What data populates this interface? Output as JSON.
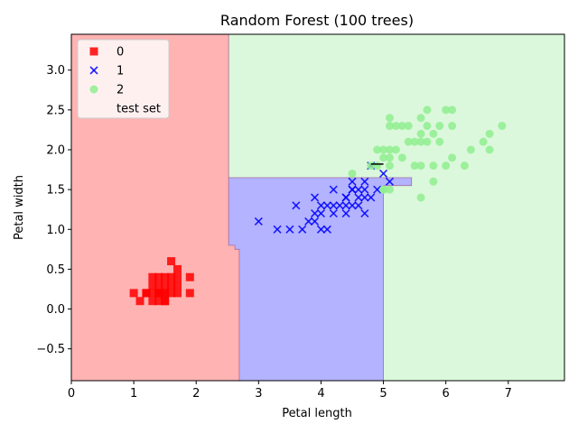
{
  "chart_data": {
    "type": "scatter",
    "title": "Random Forest (100 trees)",
    "xlabel": "Petal length",
    "ylabel": "Petal width",
    "xlim": [
      0,
      7.9
    ],
    "ylim": [
      -0.9,
      3.45
    ],
    "xticks": [
      0,
      1,
      2,
      3,
      4,
      5,
      6,
      7
    ],
    "yticks": [
      -0.5,
      0.0,
      0.5,
      1.0,
      1.5,
      2.0,
      2.5,
      3.0
    ],
    "xtick_labels": [
      "0",
      "1",
      "2",
      "3",
      "4",
      "5",
      "6",
      "7"
    ],
    "ytick_labels": [
      "−0.5",
      "0.0",
      "0.5",
      "1.0",
      "1.5",
      "2.0",
      "2.5",
      "3.0"
    ],
    "grid": false,
    "legend_position": "upper-left",
    "legend": [
      {
        "label": "0",
        "marker": "square",
        "color": "#ff0000"
      },
      {
        "label": "1",
        "marker": "x",
        "color": "#0000ff"
      },
      {
        "label": "2",
        "marker": "circle",
        "color": "#90ee90"
      },
      {
        "label": "test set",
        "marker": "none",
        "color": "#ffffff"
      }
    ],
    "decision_regions": [
      {
        "class": "0",
        "color": "#ffb3b3",
        "polygon": [
          [
            0,
            -0.9
          ],
          [
            2.69,
            -0.9
          ],
          [
            2.69,
            0.75
          ],
          [
            2.62,
            0.75
          ],
          [
            2.62,
            0.8
          ],
          [
            2.52,
            0.8
          ],
          [
            2.52,
            3.45
          ],
          [
            0,
            3.45
          ]
        ]
      },
      {
        "class": "1",
        "color": "#b3b3ff",
        "polygon": [
          [
            2.69,
            -0.9
          ],
          [
            5.0,
            -0.9
          ],
          [
            5.0,
            1.55
          ],
          [
            5.45,
            1.55
          ],
          [
            5.45,
            1.65
          ],
          [
            2.52,
            1.65
          ],
          [
            2.52,
            0.8
          ],
          [
            2.62,
            0.8
          ],
          [
            2.62,
            0.75
          ],
          [
            2.69,
            0.75
          ]
        ]
      },
      {
        "class": "2",
        "color": "#dcf8dc",
        "polygon": [
          [
            5.0,
            -0.9
          ],
          [
            7.9,
            -0.9
          ],
          [
            7.9,
            3.45
          ],
          [
            2.52,
            3.45
          ],
          [
            2.52,
            1.65
          ],
          [
            5.45,
            1.65
          ],
          [
            5.45,
            1.55
          ],
          [
            5.0,
            1.55
          ]
        ]
      }
    ],
    "series": [
      {
        "name": "0",
        "marker": "square",
        "color": "#ff0000",
        "points": [
          [
            1.4,
            0.2
          ],
          [
            1.3,
            0.2
          ],
          [
            1.5,
            0.2
          ],
          [
            1.7,
            0.4
          ],
          [
            1.4,
            0.3
          ],
          [
            1.5,
            0.1
          ],
          [
            1.6,
            0.2
          ],
          [
            1.1,
            0.1
          ],
          [
            1.2,
            0.2
          ],
          [
            1.3,
            0.4
          ],
          [
            1.7,
            0.3
          ],
          [
            1.0,
            0.2
          ],
          [
            1.9,
            0.2
          ],
          [
            1.6,
            0.4
          ],
          [
            1.4,
            0.1
          ],
          [
            1.3,
            0.3
          ],
          [
            1.6,
            0.6
          ],
          [
            1.9,
            0.4
          ],
          [
            1.5,
            0.4
          ],
          [
            1.4,
            0.4
          ],
          [
            1.7,
            0.2
          ],
          [
            1.5,
            0.3
          ],
          [
            1.6,
            0.3
          ],
          [
            1.4,
            0.2
          ],
          [
            1.7,
            0.5
          ],
          [
            1.5,
            0.2
          ],
          [
            1.2,
            0.2
          ],
          [
            1.3,
            0.1
          ],
          [
            1.4,
            0.2
          ],
          [
            1.5,
            0.1
          ]
        ]
      },
      {
        "name": "1",
        "marker": "x",
        "color": "#0000ff",
        "points": [
          [
            3.0,
            1.1
          ],
          [
            3.3,
            1.0
          ],
          [
            3.5,
            1.0
          ],
          [
            3.6,
            1.3
          ],
          [
            3.7,
            1.0
          ],
          [
            3.8,
            1.1
          ],
          [
            3.9,
            1.1
          ],
          [
            3.9,
            1.2
          ],
          [
            3.9,
            1.4
          ],
          [
            4.0,
            1.0
          ],
          [
            4.0,
            1.2
          ],
          [
            4.0,
            1.3
          ],
          [
            4.1,
            1.0
          ],
          [
            4.1,
            1.3
          ],
          [
            4.2,
            1.2
          ],
          [
            4.2,
            1.3
          ],
          [
            4.2,
            1.5
          ],
          [
            4.3,
            1.3
          ],
          [
            4.4,
            1.2
          ],
          [
            4.4,
            1.3
          ],
          [
            4.4,
            1.4
          ],
          [
            4.5,
            1.3
          ],
          [
            4.5,
            1.5
          ],
          [
            4.5,
            1.6
          ],
          [
            4.6,
            1.3
          ],
          [
            4.6,
            1.4
          ],
          [
            4.6,
            1.5
          ],
          [
            4.7,
            1.2
          ],
          [
            4.7,
            1.4
          ],
          [
            4.7,
            1.5
          ],
          [
            4.7,
            1.6
          ],
          [
            4.8,
            1.4
          ],
          [
            4.8,
            1.8
          ],
          [
            4.9,
            1.5
          ],
          [
            5.0,
            1.7
          ],
          [
            5.1,
            1.6
          ],
          [
            4.5,
            1.5
          ],
          [
            4.4,
            1.4
          ]
        ]
      },
      {
        "name": "2",
        "marker": "circle",
        "color": "#90ee90",
        "points": [
          [
            4.5,
            1.7
          ],
          [
            4.8,
            1.8
          ],
          [
            4.9,
            1.8
          ],
          [
            4.9,
            2.0
          ],
          [
            5.0,
            1.5
          ],
          [
            5.0,
            1.9
          ],
          [
            5.0,
            2.0
          ],
          [
            5.1,
            1.5
          ],
          [
            5.1,
            1.8
          ],
          [
            5.1,
            1.9
          ],
          [
            5.1,
            2.0
          ],
          [
            5.1,
            2.3
          ],
          [
            5.1,
            2.4
          ],
          [
            5.2,
            2.0
          ],
          [
            5.2,
            2.3
          ],
          [
            5.3,
            1.9
          ],
          [
            5.3,
            2.3
          ],
          [
            5.4,
            2.1
          ],
          [
            5.4,
            2.3
          ],
          [
            5.5,
            1.8
          ],
          [
            5.5,
            2.1
          ],
          [
            5.6,
            1.4
          ],
          [
            5.6,
            1.8
          ],
          [
            5.6,
            2.1
          ],
          [
            5.6,
            2.2
          ],
          [
            5.6,
            2.4
          ],
          [
            5.7,
            2.1
          ],
          [
            5.7,
            2.3
          ],
          [
            5.7,
            2.5
          ],
          [
            5.8,
            1.6
          ],
          [
            5.8,
            1.8
          ],
          [
            5.8,
            2.2
          ],
          [
            5.9,
            2.1
          ],
          [
            5.9,
            2.3
          ],
          [
            6.0,
            1.8
          ],
          [
            6.0,
            2.5
          ],
          [
            6.1,
            1.9
          ],
          [
            6.1,
            2.3
          ],
          [
            6.1,
            2.5
          ],
          [
            6.3,
            1.8
          ],
          [
            6.4,
            2.0
          ],
          [
            6.6,
            2.1
          ],
          [
            6.7,
            2.0
          ],
          [
            6.7,
            2.2
          ],
          [
            6.9,
            2.3
          ],
          [
            5.0,
            1.5
          ]
        ]
      }
    ],
    "test_set_highlight": {
      "x_range": [
        4.8,
        5.45
      ],
      "y_range": [
        1.55,
        1.82
      ],
      "color": "#000000"
    }
  }
}
